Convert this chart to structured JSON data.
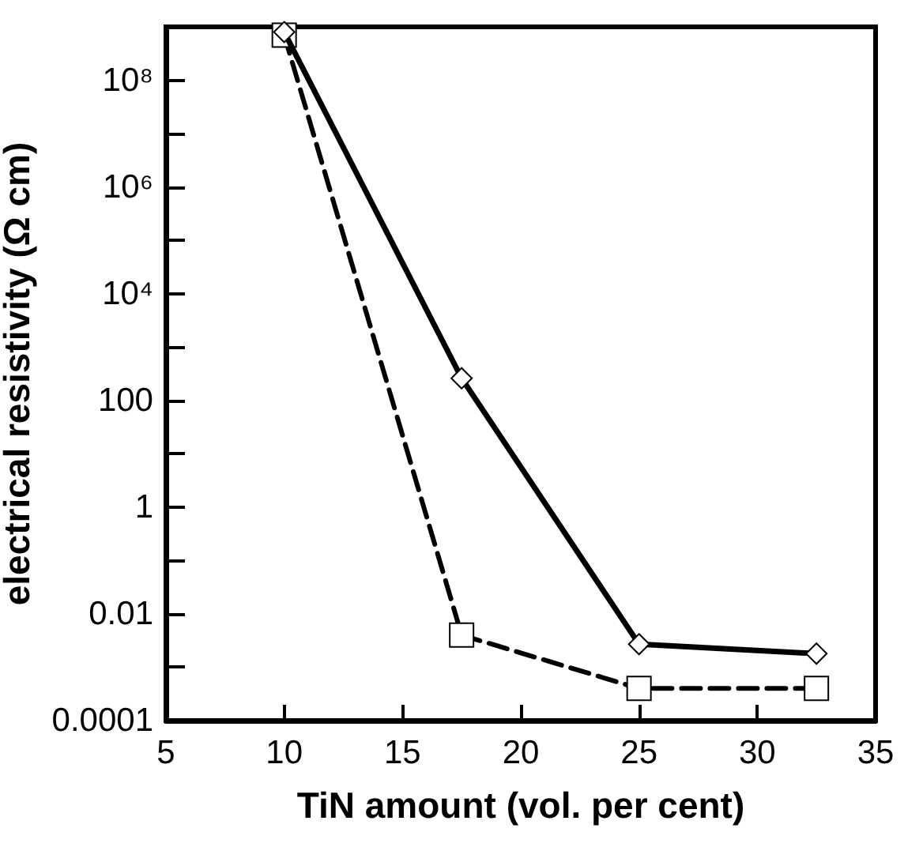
{
  "chart_data": {
    "type": "line",
    "xlabel": "TiN amount (vol. per cent)",
    "ylabel": "electrical resistivity (Ω cm)",
    "x": [
      10,
      17.5,
      25,
      32.5
    ],
    "series": [
      {
        "color": "#000000",
        "values": [
          800000000,
          260,
          0.0027,
          0.0018
        ],
        "marker": "diamond",
        "line_style": "solid"
      },
      {
        "color": "#000000",
        "values": [
          700000000,
          0.004,
          0.0004,
          0.0004
        ],
        "marker": "square",
        "line_style": "dashed"
      }
    ],
    "log": "y",
    "xlim": [
      5,
      35
    ],
    "xticks": [
      5,
      10,
      15,
      20,
      25,
      30,
      35
    ],
    "ylim": [
      0.0001,
      1000000000
    ],
    "yticks": [
      "0.0001",
      {
        "value": 0.001,
        "label": null
      },
      "0.01",
      {
        "value": 0.1,
        "label": null
      },
      "1",
      {
        "value": 10,
        "label": null
      },
      "100",
      {
        "value": 1000,
        "label": null
      },
      {
        "value": 10000,
        "label": "10⁴"
      },
      {
        "value": 100000,
        "label": null
      },
      {
        "value": 1000000,
        "label": "10⁶"
      },
      {
        "value": 10000000,
        "label": null
      },
      {
        "value": 100000000,
        "label": "10⁸"
      },
      {
        "value": 1000000000,
        "label": null
      }
    ],
    "grid": false,
    "legend": false
  }
}
